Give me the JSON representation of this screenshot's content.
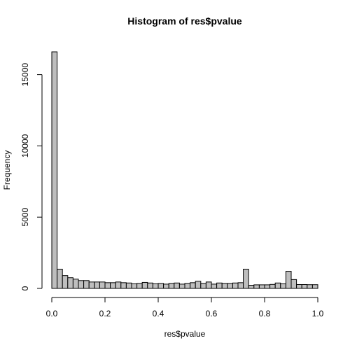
{
  "chart_data": {
    "type": "bar",
    "title": "Histogram of res$pvalue",
    "xlabel": "res$pvalue",
    "ylabel": "Frequency",
    "xlim": [
      0,
      1
    ],
    "ylim": [
      0,
      16700
    ],
    "bin_width": 0.02,
    "x_ticks": [
      0.0,
      0.2,
      0.4,
      0.6,
      0.8,
      1.0
    ],
    "x_tick_labels": [
      "0.0",
      "0.2",
      "0.4",
      "0.6",
      "0.8",
      "1.0"
    ],
    "y_ticks": [
      0,
      5000,
      10000,
      15000
    ],
    "y_tick_labels": [
      "0",
      "5000",
      "10000",
      "15000"
    ],
    "bin_starts": [
      0.0,
      0.02,
      0.04,
      0.06,
      0.08,
      0.1,
      0.12,
      0.14,
      0.16,
      0.18,
      0.2,
      0.22,
      0.24,
      0.26,
      0.28,
      0.3,
      0.32,
      0.34,
      0.36,
      0.38,
      0.4,
      0.42,
      0.44,
      0.46,
      0.48,
      0.5,
      0.52,
      0.54,
      0.56,
      0.58,
      0.6,
      0.62,
      0.64,
      0.66,
      0.68,
      0.7,
      0.72,
      0.74,
      0.76,
      0.78,
      0.8,
      0.82,
      0.84,
      0.86,
      0.88,
      0.9,
      0.92,
      0.94,
      0.96,
      0.98
    ],
    "values": [
      16600,
      1350,
      900,
      750,
      650,
      550,
      550,
      450,
      450,
      450,
      400,
      400,
      450,
      400,
      380,
      320,
      350,
      420,
      380,
      320,
      350,
      300,
      350,
      380,
      300,
      350,
      400,
      500,
      350,
      450,
      300,
      380,
      350,
      350,
      380,
      400,
      1350,
      220,
      250,
      250,
      250,
      280,
      380,
      320,
      1200,
      620,
      270,
      270,
      260,
      260
    ],
    "bar_fill": "#bebebe",
    "bar_stroke": "#000000"
  }
}
